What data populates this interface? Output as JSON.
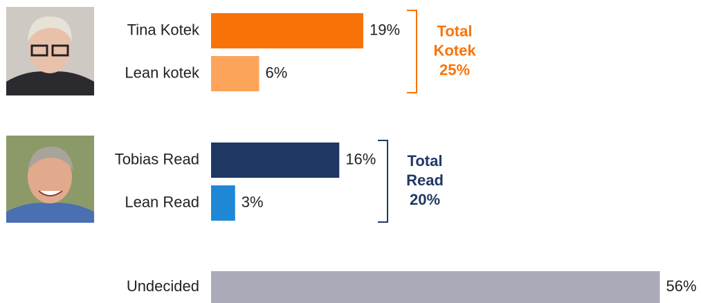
{
  "chart_data": {
    "type": "bar",
    "categories": [
      "Tina Kotek",
      "Lean kotek",
      "Tobias Read",
      "Lean Read",
      "Undecided"
    ],
    "values": [
      19,
      6,
      16,
      3,
      56
    ],
    "value_labels": [
      "19%",
      "6%",
      "16%",
      "3%",
      "56%"
    ],
    "colors": [
      "#f77309",
      "#fba45a",
      "#1f3864",
      "#1e88d6",
      "#a9abb8"
    ],
    "annotations": [
      {
        "text": [
          "Total",
          "Kotek",
          "25%"
        ],
        "color": "#f77309"
      },
      {
        "text": [
          "Total",
          "Read",
          "20%"
        ],
        "color": "#1f3864"
      }
    ]
  }
}
